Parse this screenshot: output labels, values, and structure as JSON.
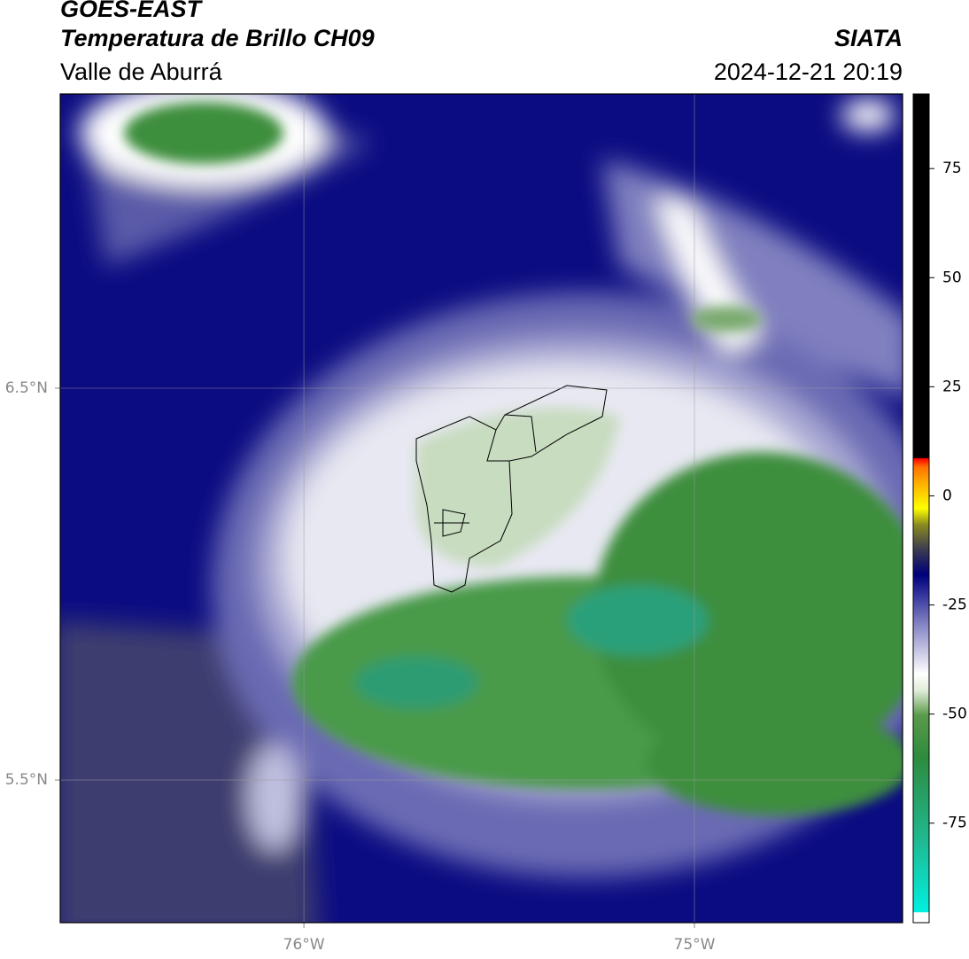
{
  "header": {
    "title": "GOES-EAST",
    "subtitle": "Temperatura de Brillo CH09",
    "region": "Valle de Aburrá",
    "source": "SIATA",
    "timestamp": "2024-12-21 20:19"
  },
  "map": {
    "lon_range": [
      -76.624,
      -74.467
    ],
    "lat_range": [
      5.136,
      7.251
    ],
    "lat_labels": [
      {
        "value": 6.5,
        "label": "6.5°N"
      },
      {
        "value": 5.5,
        "label": "5.5°N"
      }
    ],
    "lon_labels": [
      {
        "value": -76,
        "label": "76°W"
      },
      {
        "value": -75,
        "label": "75°W"
      }
    ]
  },
  "colorbar": {
    "range": [
      -97.8,
      92.1
    ],
    "ticks": [
      75,
      50,
      25,
      0,
      -25,
      -50,
      -75
    ]
  }
}
